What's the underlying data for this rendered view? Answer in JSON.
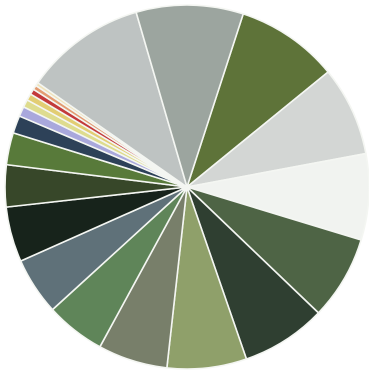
{
  "chart_data": {
    "type": "pie",
    "title": "",
    "start_angle_deg": -72,
    "direction": "clockwise",
    "legend": "none",
    "slice_border_color": "#f4f6f2",
    "slices": [
      {
        "value": 9.3,
        "color": "#5e7339"
      },
      {
        "value": 8.1,
        "color": "#d3d6d4"
      },
      {
        "value": 7.8,
        "color": "#f1f3f0"
      },
      {
        "value": 7.6,
        "color": "#4e6445"
      },
      {
        "value": 7.7,
        "color": "#2f3f31"
      },
      {
        "value": 7.2,
        "color": "#8fa06a"
      },
      {
        "value": 6.3,
        "color": "#787f6a"
      },
      {
        "value": 5.4,
        "color": "#5f8559"
      },
      {
        "value": 5.2,
        "color": "#5f7179"
      },
      {
        "value": 5.0,
        "color": "#17231b"
      },
      {
        "value": 3.8,
        "color": "#374729"
      },
      {
        "value": 2.9,
        "color": "#587a3a"
      },
      {
        "value": 1.6,
        "color": "#2d4158"
      },
      {
        "value": 0.9,
        "color": "#a9a8dc"
      },
      {
        "value": 0.7,
        "color": "#dedc8e"
      },
      {
        "value": 0.6,
        "color": "#e2cd73"
      },
      {
        "value": 0.5,
        "color": "#c33a3b"
      },
      {
        "value": 0.4,
        "color": "#e39c72"
      },
      {
        "value": 0.3,
        "color": "#f0e2b9"
      },
      {
        "value": 11.0,
        "color": "#bec3c2"
      },
      {
        "value": 9.7,
        "color": "#9ca59f"
      }
    ]
  }
}
